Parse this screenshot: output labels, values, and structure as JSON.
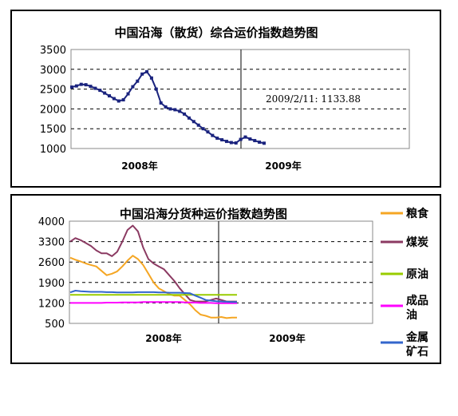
{
  "chart_data": [
    {
      "type": "line",
      "title": "中国沿海（散货）综合运价指数趋势图",
      "ylim": [
        1000,
        3500
      ],
      "yticks": [
        3500,
        3000,
        2500,
        2000,
        1500,
        1000
      ],
      "x_labels": [
        "2008年",
        "2009年"
      ],
      "annotation": "2009/2/11:  1133.88",
      "grid": "horizontal dashed",
      "series": [
        {
          "color": "#1a237e",
          "values": [
            2550,
            2580,
            2620,
            2610,
            2570,
            2520,
            2470,
            2400,
            2330,
            2260,
            2200,
            2230,
            2380,
            2560,
            2700,
            2880,
            2940,
            2780,
            2500,
            2150,
            2050,
            2000,
            1980,
            1940,
            1870,
            1770,
            1680,
            1590,
            1500,
            1420,
            1330,
            1260,
            1220,
            1180,
            1150,
            1140,
            1230,
            1290,
            1240,
            1200,
            1160,
            1133.88
          ]
        }
      ]
    },
    {
      "type": "line",
      "title": "中国沿海分货种运价指数趋势图",
      "ylim": [
        500,
        4000
      ],
      "yticks": [
        4000,
        3300,
        2600,
        1900,
        1200,
        500
      ],
      "x_labels": [
        "2008年",
        "2009年"
      ],
      "grid": "horizontal dashed",
      "legend": "right",
      "series": [
        {
          "name": "粮食",
          "color": "#f5a623",
          "values": [
            2750,
            2680,
            2620,
            2550,
            2500,
            2450,
            2300,
            2150,
            2200,
            2280,
            2450,
            2650,
            2820,
            2700,
            2500,
            2200,
            1900,
            1700,
            1600,
            1500,
            1450,
            1450,
            1300,
            1150,
            950,
            800,
            760,
            700,
            700,
            720,
            680,
            700,
            700
          ]
        },
        {
          "name": "煤炭",
          "color": "#8b3a62",
          "values": [
            3300,
            3420,
            3350,
            3250,
            3150,
            3000,
            2900,
            2900,
            2800,
            2950,
            3300,
            3700,
            3850,
            3650,
            3100,
            2700,
            2550,
            2450,
            2350,
            2150,
            1950,
            1700,
            1500,
            1300,
            1250,
            1250,
            1250,
            1300,
            1350,
            1300,
            1250,
            1250,
            1250
          ]
        },
        {
          "name": "原油",
          "color": "#99cc00",
          "values": [
            1480,
            1480,
            1480,
            1480,
            1480,
            1480,
            1480,
            1480,
            1480,
            1480,
            1480,
            1480,
            1480,
            1480,
            1480,
            1480,
            1480,
            1480,
            1480,
            1480,
            1480,
            1480,
            1480,
            1480,
            1480,
            1480,
            1480,
            1480,
            1480,
            1480,
            1480,
            1480,
            1480
          ]
        },
        {
          "name": "成品油",
          "color": "#ff00ff",
          "values": [
            1200,
            1200,
            1200,
            1200,
            1200,
            1200,
            1200,
            1210,
            1210,
            1210,
            1220,
            1220,
            1220,
            1220,
            1230,
            1230,
            1230,
            1230,
            1230,
            1230,
            1230,
            1230,
            1220,
            1220,
            1210,
            1200,
            1200,
            1200,
            1190,
            1190,
            1190,
            1190,
            1190
          ]
        },
        {
          "name": "金属矿石",
          "color": "#3366cc",
          "values": [
            1560,
            1620,
            1600,
            1590,
            1580,
            1580,
            1580,
            1570,
            1570,
            1560,
            1560,
            1560,
            1560,
            1570,
            1570,
            1570,
            1570,
            1560,
            1560,
            1550,
            1550,
            1550,
            1540,
            1530,
            1450,
            1380,
            1300,
            1280,
            1260,
            1250,
            1240,
            1230,
            1230
          ]
        }
      ]
    }
  ]
}
